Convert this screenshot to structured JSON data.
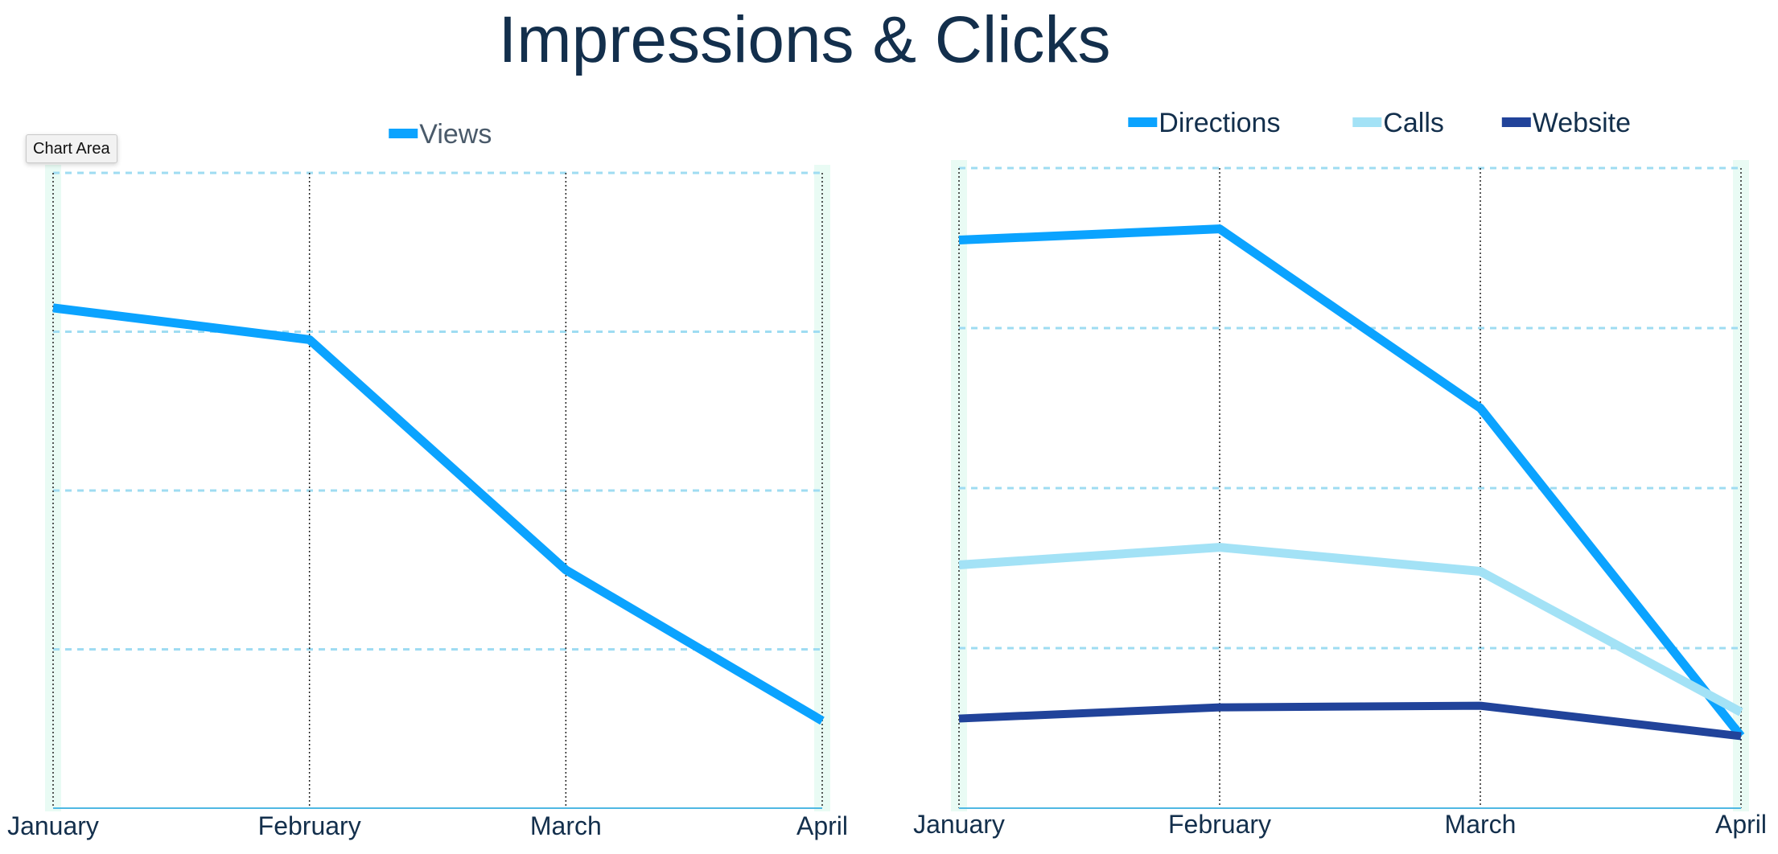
{
  "title": "Impressions & Clicks",
  "tooltip": "Chart Area",
  "chart_data": [
    {
      "type": "line",
      "categories": [
        "January",
        "February",
        "March",
        "April"
      ],
      "ylim": [
        0,
        4
      ],
      "grid": true,
      "legend_position": "top",
      "series": [
        {
          "name": "Views",
          "color": "#0ba3ff",
          "values": [
            3.15,
            2.95,
            1.5,
            0.55
          ]
        }
      ]
    },
    {
      "type": "line",
      "categories": [
        "January",
        "February",
        "March",
        "April"
      ],
      "ylim": [
        0,
        4
      ],
      "grid": true,
      "legend_position": "top",
      "series": [
        {
          "name": "Directions",
          "color": "#0ba3ff",
          "values": [
            3.55,
            3.62,
            2.5,
            0.45
          ]
        },
        {
          "name": "Calls",
          "color": "#a3e2f6",
          "values": [
            1.52,
            1.63,
            1.48,
            0.6
          ]
        },
        {
          "name": "Website",
          "color": "#21439a",
          "values": [
            0.56,
            0.63,
            0.64,
            0.45
          ]
        }
      ]
    }
  ],
  "colors": {
    "title": "#132f4c",
    "axis_labels": "#132f4c",
    "gridline": "#9fdcf2",
    "legend_text_left": "#4a5a6a",
    "legend_text_right": "#132f4c"
  }
}
